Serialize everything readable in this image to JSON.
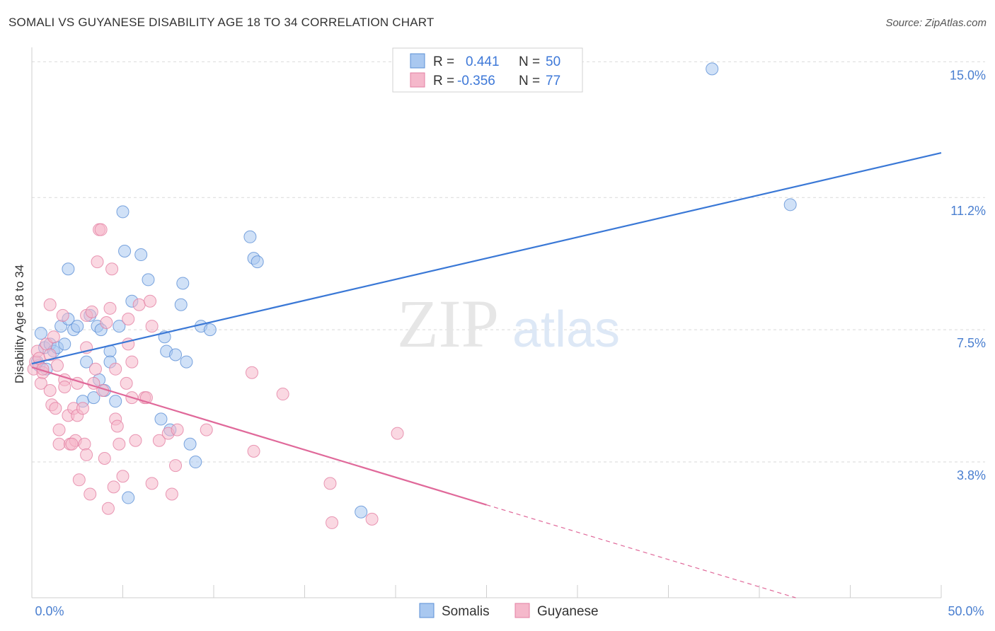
{
  "header": {
    "title": "SOMALI VS GUYANESE DISABILITY AGE 18 TO 34 CORRELATION CHART",
    "source": "Source: ZipAtlas.com"
  },
  "watermark": {
    "zip": "ZIP",
    "atlas": "atlas"
  },
  "legend": {
    "rows": [
      {
        "r_label": "R =",
        "r_value": "0.441",
        "n_label": "N =",
        "n_value": "50",
        "color": "#a9c8f0"
      },
      {
        "r_label": "R =",
        "r_value": "-0.356",
        "n_label": "N =",
        "n_value": "77",
        "color": "#f5b8cb"
      }
    ]
  },
  "bottom_legend": [
    {
      "label": "Somalis",
      "color": "#a9c8f0"
    },
    {
      "label": "Guyanese",
      "color": "#f5b8cb"
    }
  ],
  "chart_data": {
    "type": "scatter",
    "title": "SOMALI VS GUYANESE DISABILITY AGE 18 TO 34 CORRELATION CHART",
    "xlabel": "",
    "ylabel": "Disability Age 18 to 34",
    "xlim": [
      0,
      50
    ],
    "ylim": [
      0,
      15.5
    ],
    "x_tick_labels": [
      "0.0%",
      "50.0%"
    ],
    "y_ticks": [
      3.8,
      7.5,
      11.2,
      15.0
    ],
    "y_tick_labels": [
      "3.8%",
      "7.5%",
      "11.2%",
      "15.0%"
    ],
    "grid": true,
    "legend_position": "top-center",
    "series": [
      {
        "name": "Somalis",
        "color": "#5b8fd6",
        "fill": "#a9c8f0",
        "trend": {
          "x": [
            0,
            50
          ],
          "y": [
            6.55,
            12.45
          ],
          "style": "solid"
        },
        "points": [
          [
            0.3,
            6.6
          ],
          [
            0.4,
            6.5
          ],
          [
            0.5,
            7.4
          ],
          [
            0.7,
            7.0
          ],
          [
            0.8,
            6.4
          ],
          [
            1.0,
            7.1
          ],
          [
            1.2,
            6.9
          ],
          [
            1.4,
            7.0
          ],
          [
            1.6,
            7.6
          ],
          [
            1.8,
            7.1
          ],
          [
            2.0,
            9.2
          ],
          [
            2.0,
            7.8
          ],
          [
            2.3,
            7.5
          ],
          [
            2.5,
            7.6
          ],
          [
            2.8,
            5.5
          ],
          [
            3.0,
            6.6
          ],
          [
            3.2,
            7.9
          ],
          [
            3.4,
            5.6
          ],
          [
            3.6,
            7.6
          ],
          [
            3.7,
            6.1
          ],
          [
            3.8,
            7.5
          ],
          [
            4.0,
            5.8
          ],
          [
            4.3,
            6.9
          ],
          [
            4.3,
            6.6
          ],
          [
            4.6,
            5.5
          ],
          [
            4.8,
            7.6
          ],
          [
            5.0,
            10.8
          ],
          [
            5.1,
            9.7
          ],
          [
            5.3,
            2.8
          ],
          [
            5.5,
            8.3
          ],
          [
            6.0,
            9.6
          ],
          [
            6.4,
            8.9
          ],
          [
            7.1,
            5.0
          ],
          [
            7.3,
            7.3
          ],
          [
            7.4,
            6.9
          ],
          [
            7.6,
            4.7
          ],
          [
            7.9,
            6.8
          ],
          [
            8.2,
            8.2
          ],
          [
            8.3,
            8.8
          ],
          [
            8.5,
            6.6
          ],
          [
            8.7,
            4.3
          ],
          [
            9.0,
            3.8
          ],
          [
            9.3,
            7.6
          ],
          [
            9.8,
            7.5
          ],
          [
            12.0,
            10.1
          ],
          [
            12.2,
            9.5
          ],
          [
            12.4,
            9.4
          ],
          [
            18.1,
            2.4
          ],
          [
            37.4,
            14.8
          ],
          [
            41.7,
            11.0
          ]
        ]
      },
      {
        "name": "Guyanese",
        "color": "#e37fa3",
        "fill": "#f5b8cb",
        "trend": {
          "x": [
            0,
            25
          ],
          "y": [
            6.45,
            2.6
          ],
          "style": "solid",
          "dashed_to": {
            "x": 42,
            "y": 0
          }
        },
        "points": [
          [
            0.1,
            6.4
          ],
          [
            0.2,
            6.6
          ],
          [
            0.3,
            6.9
          ],
          [
            0.5,
            6.0
          ],
          [
            0.6,
            6.3
          ],
          [
            0.8,
            7.1
          ],
          [
            1.0,
            5.8
          ],
          [
            1.0,
            8.2
          ],
          [
            1.1,
            5.4
          ],
          [
            1.2,
            7.3
          ],
          [
            1.3,
            5.3
          ],
          [
            1.4,
            6.5
          ],
          [
            1.5,
            4.3
          ],
          [
            1.5,
            4.7
          ],
          [
            1.7,
            7.9
          ],
          [
            1.8,
            6.1
          ],
          [
            1.8,
            5.9
          ],
          [
            2.0,
            5.1
          ],
          [
            2.1,
            4.3
          ],
          [
            2.3,
            5.3
          ],
          [
            2.4,
            4.4
          ],
          [
            2.5,
            5.1
          ],
          [
            2.5,
            6.0
          ],
          [
            2.6,
            3.3
          ],
          [
            2.8,
            5.3
          ],
          [
            2.9,
            4.3
          ],
          [
            3.0,
            7.0
          ],
          [
            3.0,
            7.9
          ],
          [
            3.0,
            4.0
          ],
          [
            3.2,
            2.9
          ],
          [
            3.3,
            8.0
          ],
          [
            3.5,
            6.4
          ],
          [
            3.6,
            9.4
          ],
          [
            3.7,
            10.3
          ],
          [
            3.8,
            10.3
          ],
          [
            3.9,
            5.8
          ],
          [
            4.0,
            3.9
          ],
          [
            4.1,
            7.7
          ],
          [
            4.2,
            2.5
          ],
          [
            4.3,
            8.1
          ],
          [
            4.4,
            9.2
          ],
          [
            4.5,
            3.1
          ],
          [
            4.6,
            6.4
          ],
          [
            4.6,
            5.0
          ],
          [
            4.7,
            4.8
          ],
          [
            4.8,
            4.3
          ],
          [
            5.0,
            3.4
          ],
          [
            5.2,
            6.0
          ],
          [
            5.3,
            7.8
          ],
          [
            5.3,
            7.1
          ],
          [
            5.5,
            6.6
          ],
          [
            5.5,
            5.6
          ],
          [
            5.7,
            4.4
          ],
          [
            5.9,
            8.2
          ],
          [
            6.2,
            5.6
          ],
          [
            6.5,
            8.3
          ],
          [
            6.6,
            7.6
          ],
          [
            6.6,
            3.2
          ],
          [
            7.0,
            4.4
          ],
          [
            7.5,
            4.6
          ],
          [
            7.7,
            2.9
          ],
          [
            7.9,
            3.7
          ],
          [
            8.0,
            4.7
          ],
          [
            9.6,
            4.7
          ],
          [
            12.1,
            6.3
          ],
          [
            12.2,
            4.1
          ],
          [
            13.8,
            5.7
          ],
          [
            16.4,
            3.2
          ],
          [
            16.5,
            2.1
          ],
          [
            18.7,
            2.2
          ],
          [
            20.1,
            4.6
          ],
          [
            0.4,
            6.7
          ],
          [
            0.6,
            6.4
          ],
          [
            1.0,
            6.8
          ],
          [
            2.2,
            4.3
          ],
          [
            3.4,
            6.0
          ],
          [
            6.3,
            5.6
          ]
        ]
      }
    ]
  }
}
